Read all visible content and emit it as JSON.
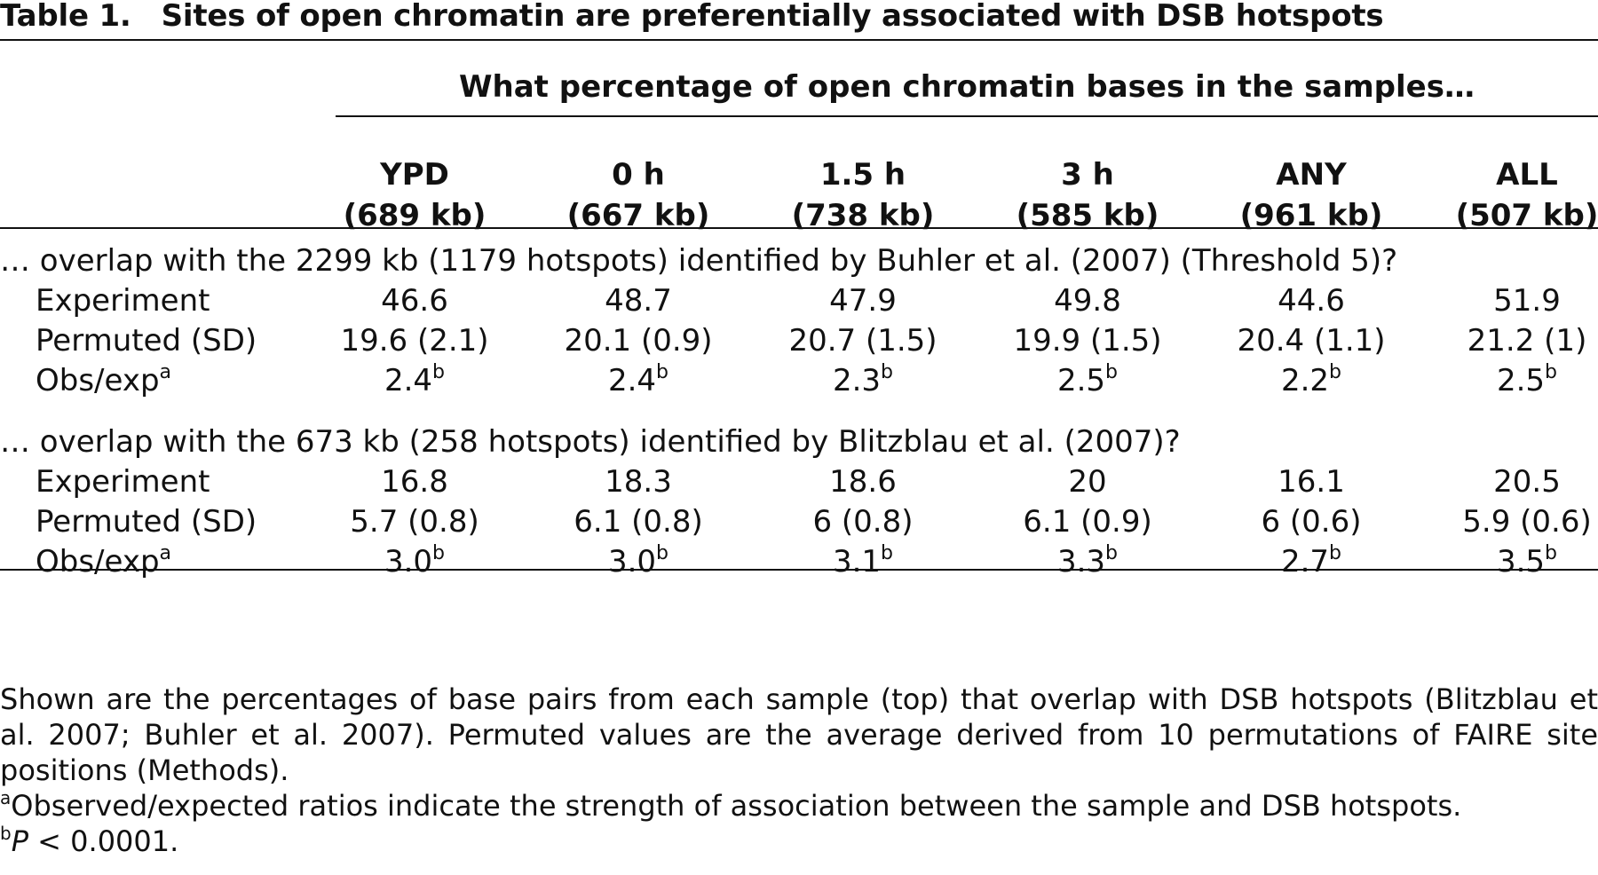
{
  "table": {
    "label": "Table 1.",
    "title": "Sites of open chromatin are preferentially associated with DSB hotspots",
    "spanner": "What percentage of open chromatin bases in the samples…",
    "columns": [
      {
        "name": "YPD",
        "size": "(689 kb)"
      },
      {
        "name": "0 h",
        "size": "(667 kb)"
      },
      {
        "name": "1.5 h",
        "size": "(738 kb)"
      },
      {
        "name": "3 h",
        "size": "(585 kb)"
      },
      {
        "name": "ANY",
        "size": "(961 kb)"
      },
      {
        "name": "ALL",
        "size": "(507 kb)"
      }
    ],
    "sections": [
      {
        "title": "… overlap with the 2299 kb (1179 hotspots) identified by Buhler et al. (2007) (Threshold 5)?",
        "rows": [
          {
            "label": "Experiment",
            "label_sup": "",
            "values": [
              "46.6",
              "48.7",
              "47.9",
              "49.8",
              "44.6",
              "51.9"
            ],
            "value_sup": ""
          },
          {
            "label": "Permuted (SD)",
            "label_sup": "",
            "values": [
              "19.6 (2.1)",
              "20.1 (0.9)",
              "20.7 (1.5)",
              "19.9 (1.5)",
              "20.4 (1.1)",
              "21.2 (1)"
            ],
            "value_sup": ""
          },
          {
            "label": "Obs/exp",
            "label_sup": "a",
            "values": [
              "2.4",
              "2.4",
              "2.3",
              "2.5",
              "2.2",
              "2.5"
            ],
            "value_sup": "b"
          }
        ]
      },
      {
        "title": "… overlap with the 673 kb (258 hotspots) identified by Blitzblau et al. (2007)?",
        "rows": [
          {
            "label": "Experiment",
            "label_sup": "",
            "values": [
              "16.8",
              "18.3",
              "18.6",
              "20",
              "16.1",
              "20.5"
            ],
            "value_sup": ""
          },
          {
            "label": "Permuted (SD)",
            "label_sup": "",
            "values": [
              "5.7 (0.8)",
              "6.1 (0.8)",
              "6 (0.8)",
              "6.1 (0.9)",
              "6 (0.6)",
              "5.9 (0.6)"
            ],
            "value_sup": ""
          },
          {
            "label": "Obs/exp",
            "label_sup": "a",
            "values": [
              "3.0",
              "3.0",
              "3.1",
              "3.3",
              "2.7",
              "3.5"
            ],
            "value_sup": "b"
          }
        ]
      }
    ]
  },
  "footnotes": {
    "main": "Shown are the percentages of base pairs from each sample (top) that overlap with DSB hotspots (Blitzblau et al. 2007; Buhler et al. 2007). Permuted values are the average derived from 10 permutations of FAIRE site positions (Methods).",
    "a_mark": "a",
    "a_text": "Observed/expected ratios indicate the strength of association between the sample and DSB hotspots.",
    "b_mark": "b",
    "b_italic": "P",
    "b_text": " < 0.0001."
  }
}
